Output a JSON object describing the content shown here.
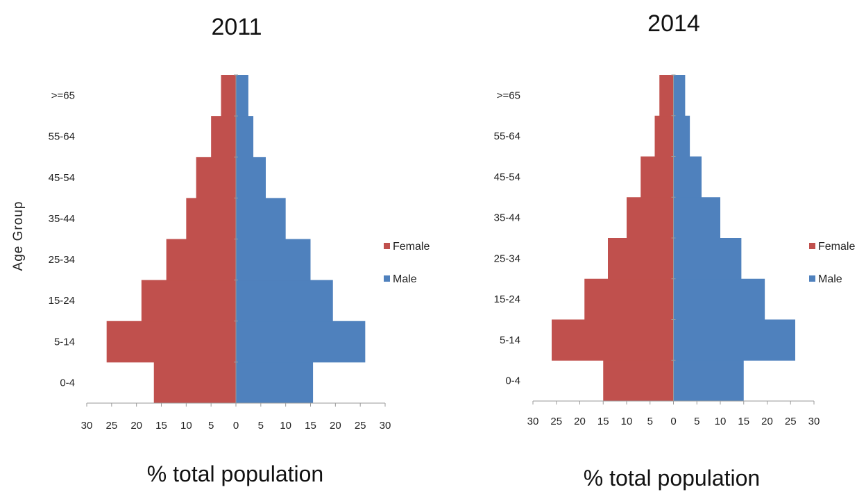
{
  "chart_data": [
    {
      "type": "bar",
      "orientation": "horizontal-population-pyramid",
      "title": "2011",
      "xlabel": "% total population",
      "ylabel": "Age Group",
      "categories": [
        "0-4",
        "5-14",
        "15-24",
        "25-34",
        "35-44",
        "45-54",
        "55-64",
        ">=65"
      ],
      "series": [
        {
          "name": "Female",
          "color": "#c0504d",
          "values": [
            16.5,
            26,
            19,
            14,
            10,
            8,
            5,
            3
          ]
        },
        {
          "name": "Male",
          "color": "#4f81bd",
          "values": [
            15.5,
            26,
            19.5,
            15,
            10,
            6,
            3.5,
            2.5
          ]
        }
      ],
      "xlim": [
        -30,
        30
      ],
      "xticks": [
        -30,
        -25,
        -20,
        -15,
        -10,
        -5,
        0,
        5,
        10,
        15,
        20,
        25,
        30
      ],
      "xtick_labels": [
        "30",
        "25",
        "20",
        "15",
        "10",
        "5",
        "0",
        "5",
        "10",
        "15",
        "20",
        "25",
        "30"
      ],
      "legend": "right",
      "grid": false
    },
    {
      "type": "bar",
      "orientation": "horizontal-population-pyramid",
      "title": "2014",
      "xlabel": "% total population",
      "ylabel": "",
      "categories": [
        "0-4",
        "5-14",
        "15-24",
        "25-34",
        "35-44",
        "45-54",
        "55-64",
        ">=65"
      ],
      "series": [
        {
          "name": "Female",
          "color": "#c0504d",
          "values": [
            15,
            26,
            19,
            14,
            10,
            7,
            4,
            3
          ]
        },
        {
          "name": "Male",
          "color": "#4f81bd",
          "values": [
            15,
            26,
            19.5,
            14.5,
            10,
            6,
            3.5,
            2.5
          ]
        }
      ],
      "xlim": [
        -30,
        30
      ],
      "xticks": [
        -30,
        -25,
        -20,
        -15,
        -10,
        -5,
        0,
        5,
        10,
        15,
        20,
        25,
        30
      ],
      "xtick_labels": [
        "30",
        "25",
        "20",
        "15",
        "10",
        "5",
        "0",
        "5",
        "10",
        "15",
        "20",
        "25",
        "30"
      ],
      "legend": "right",
      "grid": false
    }
  ]
}
